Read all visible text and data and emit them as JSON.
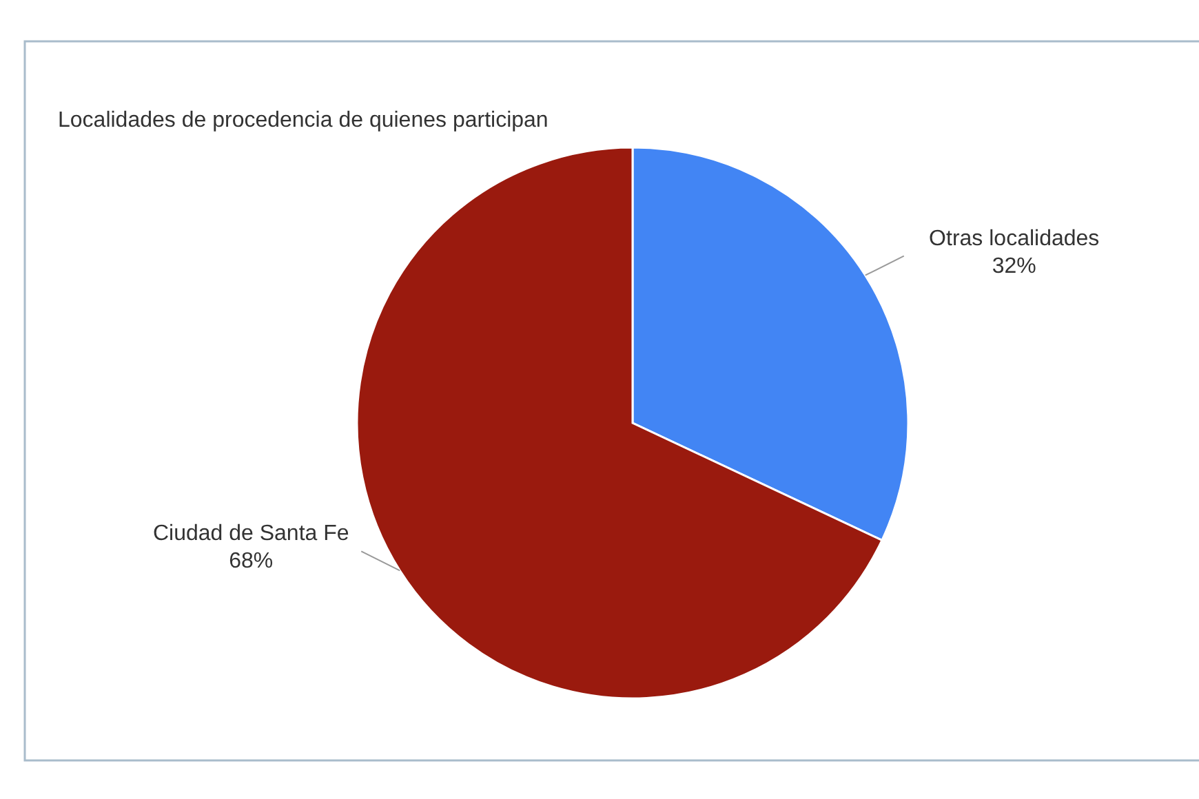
{
  "chart_data": {
    "type": "pie",
    "title": "Localidades de procedencia de quienes participan",
    "categories": [
      "Otras localidades",
      "Ciudad de Santa Fe"
    ],
    "values": [
      32,
      68
    ],
    "colors": [
      "#4285f4",
      "#9a1a0e"
    ],
    "value_labels": [
      "32%",
      "68%"
    ]
  }
}
